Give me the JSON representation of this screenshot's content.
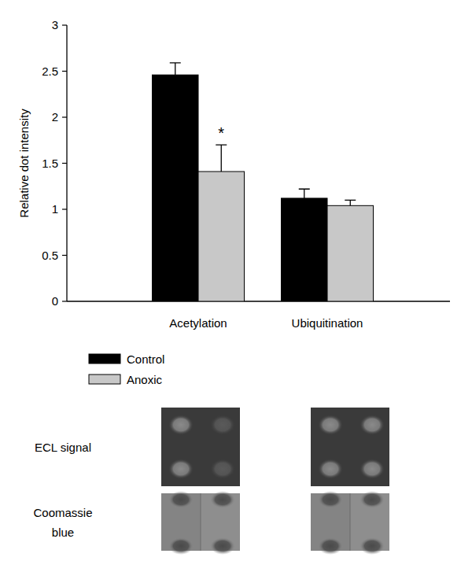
{
  "chart_data": {
    "type": "bar",
    "y_label": "Relative dot intensity",
    "categories": [
      "Acetylation",
      "Ubiquitination"
    ],
    "series": [
      {
        "name": "Control",
        "color": "#000000",
        "values": [
          2.46,
          1.12
        ],
        "errors": [
          0.13,
          0.1
        ]
      },
      {
        "name": "Anoxic",
        "color": "#c8c8c8",
        "values": [
          1.41,
          1.04
        ],
        "errors": [
          0.29,
          0.06
        ]
      }
    ],
    "ylim": [
      0,
      3
    ],
    "yticks": [
      0,
      0.5,
      1,
      1.5,
      2,
      2.5,
      3
    ],
    "grid": false,
    "legend": "bottom",
    "annotations": [
      {
        "text": "*",
        "category": "Acetylation",
        "series": "Anoxic"
      }
    ]
  },
  "blot": {
    "rows": [
      "ECL signal",
      "Coomassie blue"
    ]
  }
}
